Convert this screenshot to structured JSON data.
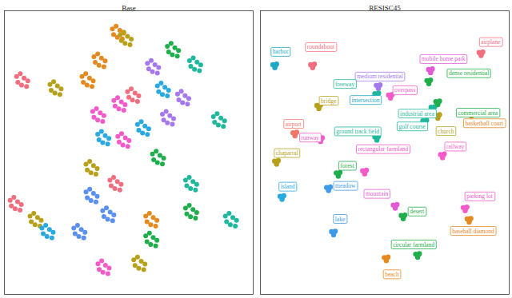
{
  "chart_data": [
    {
      "type": "scatter",
      "title": "Base",
      "tick_labels": false,
      "xlim": [
        0,
        100
      ],
      "ylim": [
        0,
        100
      ],
      "series": [
        {
          "color": "#f26d7d",
          "x": [
            4.9,
            6.4,
            7.9,
            9.4,
            8.9,
            6.9,
            5.4,
            42.4,
            43.9,
            45.4,
            46.9,
            46.4,
            44.4,
            42.9,
            2.3,
            3.8,
            5.3,
            6.8,
            6.3,
            4.3,
            2.8,
            49.5,
            51,
            52.5,
            54,
            53.5,
            51.5,
            50
          ],
          "y": [
            76.8,
            77.8,
            76.3,
            75.3,
            73.3,
            73.8,
            74.8,
            40.3,
            41.3,
            39.8,
            38.8,
            36.8,
            37.3,
            38.3,
            33.2,
            34.2,
            32.7,
            31.7,
            29.7,
            30.2,
            31.2,
            71.5,
            72.5,
            71,
            70,
            68,
            68.5,
            69.5
          ]
        },
        {
          "color": "#e58a1f",
          "x": [
            43.4,
            44.9,
            46.4,
            47.9,
            47.4,
            45.4,
            43.9,
            36,
            37.5,
            39,
            40.5,
            40,
            38,
            36.5,
            31.2,
            32.7,
            34.2,
            35.7,
            35.2,
            33.2,
            31.7,
            56.8,
            58.3,
            59.8,
            61.3,
            60.8,
            58.8,
            57.3
          ],
          "y": [
            93.6,
            94.6,
            93.1,
            92.1,
            90.1,
            90.6,
            91.6,
            83.8,
            84.8,
            83.3,
            82.3,
            80.3,
            80.8,
            81.8,
            76.8,
            77.8,
            76.3,
            75.3,
            73.3,
            73.8,
            74.8,
            27.6,
            28.6,
            27.1,
            26.1,
            24.1,
            24.6,
            25.6
          ]
        },
        {
          "color": "#b8a11a",
          "x": [
            18.3,
            19.8,
            21.3,
            22.8,
            22.3,
            20.3,
            18.8,
            32.8,
            34.3,
            35.8,
            37.3,
            36.8,
            34.8,
            33.3,
            10.3,
            11.8,
            13.3,
            14.8,
            14.3,
            12.3,
            10.8,
            52,
            53.5,
            55,
            56.5,
            56,
            54,
            52.5,
            46.5,
            48,
            49.5,
            51,
            50.5,
            48.5,
            47
          ],
          "y": [
            74,
            75,
            73.5,
            72.5,
            70.5,
            71,
            72,
            45.9,
            46.9,
            45.4,
            44.4,
            42.4,
            42.9,
            43.9,
            27.6,
            28.6,
            27.1,
            26.1,
            24.1,
            24.6,
            25.6,
            12.2,
            13.2,
            11.7,
            10.7,
            8.7,
            9.2,
            10.2,
            91.5,
            92.5,
            91,
            90,
            88,
            88.5,
            89.5
          ]
        },
        {
          "color": "#1fae4b",
          "x": [
            65.5,
            67,
            68.5,
            70,
            69.5,
            67.5,
            66,
            59.5,
            61,
            62.5,
            64,
            63.5,
            61.5,
            60,
            72.8,
            74.3,
            75.8,
            77.3,
            76.8,
            74.8,
            73.3,
            56.8,
            58.3,
            59.8,
            61.3,
            60.8,
            58.8,
            57.3
          ],
          "y": [
            87.5,
            88.5,
            87,
            86,
            84,
            84.5,
            85.5,
            49.5,
            50.5,
            49,
            48,
            46,
            46.5,
            47.5,
            30.4,
            31.4,
            29.9,
            28.9,
            26.9,
            27.4,
            28.4,
            20.6,
            21.6,
            20.1,
            19.1,
            17.1,
            17.6,
            18.6
          ]
        },
        {
          "color": "#1fb89c",
          "x": [
            74.4,
            75.9,
            77.4,
            78.9,
            78.4,
            76.4,
            74.9,
            84,
            85.5,
            87,
            88.5,
            88,
            86,
            84.5,
            72.8,
            74.3,
            75.8,
            77.3,
            76.8,
            74.8,
            73.3,
            88.8,
            90.3,
            91.8,
            93.3,
            92.8,
            90.8,
            89.3
          ],
          "y": [
            82.4,
            83.4,
            81.9,
            80.9,
            78.9,
            79.4,
            80.4,
            62.7,
            63.7,
            62.2,
            61.2,
            59.2,
            59.7,
            60.7,
            40.3,
            41.3,
            39.8,
            38.8,
            36.8,
            37.3,
            38.3,
            27.6,
            28.6,
            27.1,
            26.1,
            24.1,
            24.6,
            25.6
          ]
        },
        {
          "color": "#29a9df",
          "x": [
            53.5,
            55,
            56.5,
            58,
            57.5,
            55.5,
            54,
            61.5,
            63,
            64.5,
            66,
            65.5,
            63.5,
            62,
            15.1,
            16.6,
            18.1,
            19.6,
            19.1,
            17.1,
            15.6,
            37.5,
            39,
            40.5,
            42,
            41.5,
            39.5,
            38
          ],
          "y": [
            59.9,
            60.9,
            59.4,
            58.4,
            56.4,
            56.9,
            57.9,
            73.5,
            74.5,
            73,
            72,
            70,
            70.5,
            71.5,
            23.4,
            24.4,
            22.9,
            21.9,
            19.9,
            20.4,
            21.4,
            56.5,
            57.5,
            56,
            55,
            53,
            53.5,
            54.5
          ]
        },
        {
          "color": "#5b8ff0",
          "x": [
            32.8,
            34.3,
            35.8,
            37.3,
            36.8,
            34.8,
            33.3,
            27.9,
            29.4,
            30.9,
            32.4,
            31.9,
            29.9,
            28.4,
            39.5,
            41,
            42.5,
            44,
            43.5,
            41.5,
            40
          ],
          "y": [
            36.1,
            37.1,
            35.6,
            34.6,
            32.6,
            33.1,
            34.1,
            23.4,
            24.4,
            22.9,
            21.9,
            19.9,
            20.4,
            21.4,
            29.5,
            30.5,
            29,
            28,
            26,
            26.5,
            27.5
          ]
        },
        {
          "color": "#a678ee",
          "x": [
            69.6,
            71.1,
            72.6,
            74.1,
            73.6,
            71.6,
            70.1,
            57.5,
            59,
            60.5,
            62,
            61.5,
            59.5,
            58,
            63.5,
            65,
            66.5,
            68,
            67.5,
            65.5,
            64
          ],
          "y": [
            70.6,
            71.6,
            70.1,
            69.1,
            67.1,
            67.6,
            68.6,
            81.5,
            82.5,
            81,
            80,
            78,
            78.5,
            79.5,
            63.5,
            64.5,
            63,
            62,
            60,
            60.5,
            61.5
          ]
        },
        {
          "color": "#f45bc9",
          "x": [
            44,
            45.5,
            47,
            48.5,
            48,
            46,
            44.5,
            37.6,
            39.1,
            40.6,
            42.1,
            41.6,
            39.6,
            38.1,
            45.6,
            47.1,
            48.6,
            50.1,
            49.6,
            47.6,
            46.1,
            35.5,
            37,
            38.5,
            40,
            39.5,
            37.5,
            36
          ],
          "y": [
            68.4,
            69.4,
            67.9,
            66.9,
            64.9,
            65.4,
            66.4,
            10.8,
            11.8,
            10.3,
            9.3,
            7.3,
            7.8,
            8.8,
            55.7,
            56.7,
            55.2,
            54.2,
            52.2,
            52.7,
            53.7,
            64.5,
            65.5,
            64,
            63,
            61,
            61.5,
            62.5
          ]
        }
      ]
    },
    {
      "type": "scatter",
      "title": "RESISC45",
      "tick_labels": false,
      "xlim": [
        0,
        100
      ],
      "ylim": [
        0,
        100
      ],
      "series": [
        {
          "name": "harbor",
          "color": "#1fa7c4",
          "x": [
            5.0,
            6.5,
            5.8,
            6.0
          ],
          "y": [
            81.0,
            81.2,
            79.9,
            80.7
          ]
        },
        {
          "name": "roundabout",
          "color": "#f26d7d",
          "x": [
            20.2,
            21.7,
            21.0,
            21.2
          ],
          "y": [
            81.0,
            81.2,
            79.9,
            80.7
          ]
        },
        {
          "name": "airplane",
          "color": "#f26d7d",
          "x": [
            87.9,
            89.4,
            88.7,
            88.9
          ],
          "y": [
            85.3,
            85.5,
            84.2,
            85.0
          ]
        },
        {
          "name": "mobile home park",
          "color": "#e25bd4",
          "x": [
            67.6,
            69.1,
            68.4,
            68.6
          ],
          "y": [
            79.3,
            79.5,
            78.2,
            79.0
          ]
        },
        {
          "name": "medium residential",
          "color": "#a678ee",
          "x": [
            46.6,
            48.1,
            47.4,
            47.6
          ],
          "y": [
            73.7,
            73.9,
            72.6,
            73.4
          ]
        },
        {
          "name": "dense residential",
          "color": "#1fae4b",
          "x": [
            66.9,
            68.4,
            67.7,
            67.9
          ],
          "y": [
            75.4,
            75.6,
            74.3,
            75.1
          ]
        },
        {
          "name": "freeway",
          "color": "#1fb89c",
          "x": [
            46.0,
            47.5,
            46.8,
            47.0
          ],
          "y": [
            70.8,
            71.0,
            69.7,
            70.5
          ]
        },
        {
          "name": "overpass",
          "color": "#f45bc9",
          "x": [
            51.5,
            53.0,
            52.3,
            52.5
          ],
          "y": [
            70.3,
            70.5,
            69.2,
            70.0
          ]
        },
        {
          "name": "bridge",
          "color": "#b8a11a",
          "x": [
            22.7,
            24.2,
            23.5,
            23.7
          ],
          "y": [
            66.6,
            66.8,
            65.5,
            66.3
          ]
        },
        {
          "name": "intersection",
          "color": "#1fa7c4",
          "x": [
            43.4,
            44.9,
            44.2,
            44.4
          ],
          "y": [
            69.1,
            69.3,
            68.0,
            68.8
          ]
        },
        {
          "name": "industrial area",
          "color": "#1fb89c",
          "x": [
            68.6,
            70.1,
            69.4,
            69.6
          ],
          "y": [
            66.0,
            66.2,
            64.9,
            65.7
          ]
        },
        {
          "name": "commercial area",
          "color": "#1fae4b",
          "x": [
            70.5,
            72.0,
            71.3,
            71.5
          ],
          "y": [
            68.0,
            68.2,
            66.9,
            67.7
          ]
        },
        {
          "name": "church",
          "color": "#b8a11a",
          "x": [
            70.5,
            72.0,
            71.3,
            71.5
          ],
          "y": [
            63.2,
            63.4,
            62.1,
            62.9
          ]
        },
        {
          "name": "golf course",
          "color": "#1fb89c",
          "x": [
            65.3,
            66.8,
            66.1,
            66.3
          ],
          "y": [
            61.2,
            61.4,
            60.1,
            60.9
          ]
        },
        {
          "name": "runway",
          "color": "#f45bc9",
          "x": [
            23.4,
            24.9,
            24.2,
            24.4
          ],
          "y": [
            55.0,
            55.2,
            53.9,
            54.7
          ]
        },
        {
          "name": "basketball court",
          "color": "#e58a1f",
          "x": [
            84.0,
            85.5,
            84.8,
            85.0
          ],
          "y": [
            64.0,
            64.2,
            62.9,
            63.7
          ]
        },
        {
          "name": "airport",
          "color": "#f0766a",
          "x": [
            13.1,
            14.6,
            13.9,
            14.1
          ],
          "y": [
            57.0,
            57.2,
            55.9,
            56.7
          ]
        },
        {
          "name": "ground track field",
          "color": "#1fb89c",
          "x": [
            46.0,
            47.5,
            46.8,
            47.0
          ],
          "y": [
            55.5,
            55.7,
            54.4,
            55.2
          ]
        },
        {
          "name": "railway",
          "color": "#f45bc9",
          "x": [
            72.4,
            73.9,
            73.2,
            73.4
          ],
          "y": [
            49.3,
            49.5,
            48.2,
            49.0
          ]
        },
        {
          "name": "chaparral",
          "color": "#b8a11a",
          "x": [
            5.7,
            7.2,
            6.5,
            6.7
          ],
          "y": [
            47.0,
            47.2,
            45.9,
            46.7
          ]
        },
        {
          "name": "rectangular farmland",
          "color": "#f45bc9",
          "x": [
            41.1,
            42.6,
            41.9,
            42.1
          ],
          "y": [
            43.6,
            43.8,
            42.5,
            43.3
          ]
        },
        {
          "name": "forest",
          "color": "#1fae4b",
          "x": [
            30.5,
            32.0,
            31.3,
            31.5
          ],
          "y": [
            42.8,
            43.0,
            41.7,
            42.5
          ]
        },
        {
          "name": "island",
          "color": "#29a9df",
          "x": [
            7.9,
            9.4,
            8.7,
            8.9
          ],
          "y": [
            34.6,
            34.8,
            33.5,
            34.3
          ]
        },
        {
          "name": "meadow",
          "color": "#3f9be8",
          "x": [
            26.6,
            28.1,
            27.4,
            27.6
          ],
          "y": [
            37.7,
            37.9,
            36.6,
            37.4
          ]
        },
        {
          "name": "mountain",
          "color": "#e25bd4",
          "x": [
            53.4,
            54.9,
            54.2,
            54.4
          ],
          "y": [
            31.5,
            31.7,
            30.4,
            31.2
          ]
        },
        {
          "name": "parking lot",
          "color": "#f45bc9",
          "x": [
            81.5,
            83.0,
            82.3,
            82.5
          ],
          "y": [
            30.6,
            30.8,
            29.5,
            30.3
          ]
        },
        {
          "name": "lake",
          "color": "#3f9be8",
          "x": [
            28.6,
            30.1,
            29.4,
            29.6
          ],
          "y": [
            22.1,
            22.3,
            21.0,
            21.8
          ]
        },
        {
          "name": "desert",
          "color": "#1fae4b",
          "x": [
            56.6,
            58.1,
            57.4,
            57.6
          ],
          "y": [
            27.8,
            28.0,
            26.7,
            27.5
          ]
        },
        {
          "name": "baseball diamond",
          "color": "#e58a1f",
          "x": [
            83.1,
            84.6,
            83.9,
            84.1
          ],
          "y": [
            26.6,
            26.8,
            25.5,
            26.3
          ]
        },
        {
          "name": "circular farmland",
          "color": "#1fae4b",
          "x": [
            62.4,
            63.9,
            63.2,
            63.4
          ],
          "y": [
            14.2,
            14.4,
            13.1,
            13.9
          ]
        },
        {
          "name": "beach",
          "color": "#e58a1f",
          "x": [
            49.8,
            51.3,
            50.6,
            50.8
          ],
          "y": [
            13.0,
            13.2,
            11.9,
            12.7
          ]
        }
      ]
    }
  ]
}
